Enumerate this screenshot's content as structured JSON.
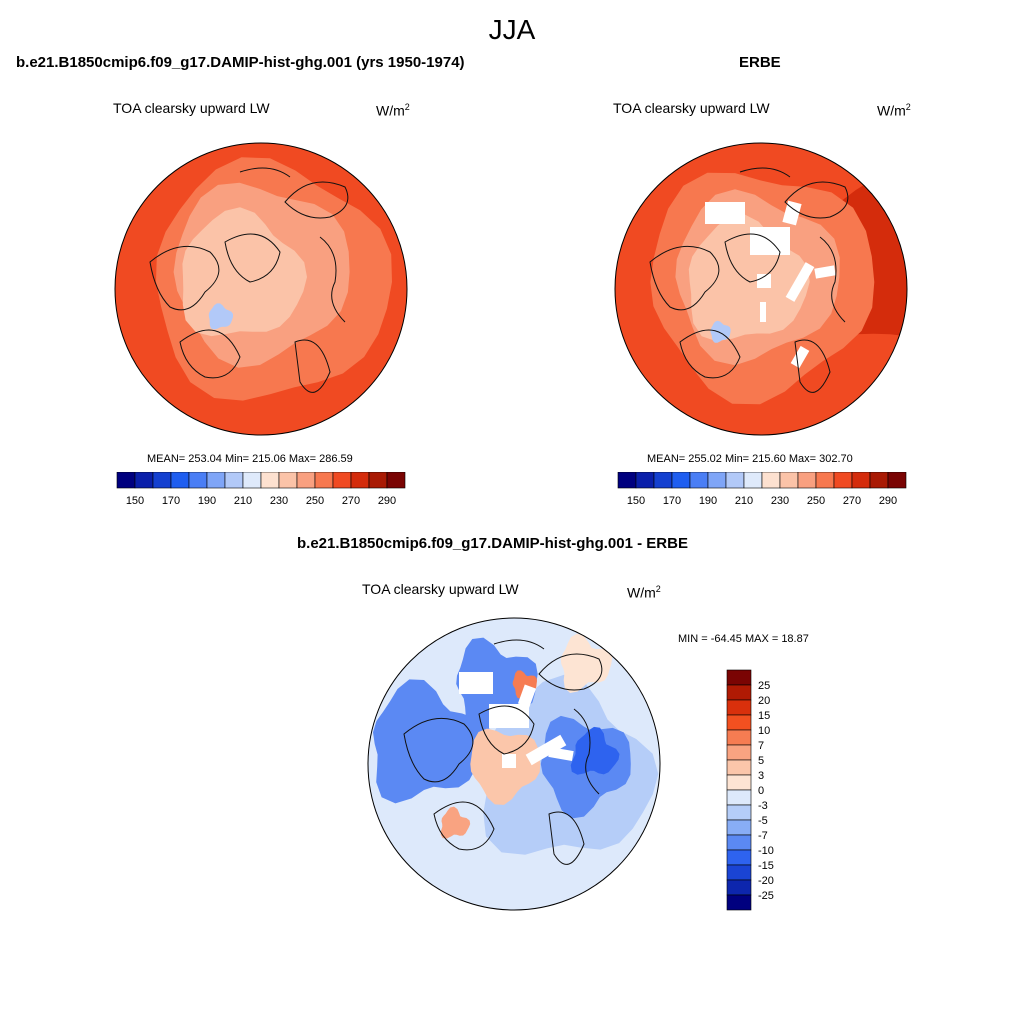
{
  "main_title": "JJA",
  "panels": [
    {
      "title": "b.e21.B1850cmip6.f09_g17.DAMIP-hist-ghg.001 (yrs 1950-1974)",
      "variable": "TOA clearsky upward LW",
      "units": "W/m",
      "units_sup": "2",
      "stats": "MEAN= 253.04  Min= 215.06  Max= 286.59"
    },
    {
      "title": "ERBE",
      "variable": "TOA clearsky upward LW",
      "units": "W/m",
      "units_sup": "2",
      "stats": "MEAN= 255.02  Min= 215.60  Max= 302.70"
    },
    {
      "title": "b.e21.B1850cmip6.f09_g17.DAMIP-hist-ghg.001 - ERBE",
      "variable": "TOA clearsky upward LW",
      "units": "W/m",
      "units_sup": "2",
      "stats": "MIN = -64.45 MAX =  18.87"
    }
  ],
  "chart_data": [
    {
      "type": "heatmap",
      "projection": "north polar stereographic",
      "title": "b.e21.B1850cmip6.f09_g17.DAMIP-hist-ghg.001 (yrs 1950-1974)",
      "variable": "TOA clearsky upward LW",
      "units": "W/m2",
      "mean": 253.04,
      "min": 215.06,
      "max": 286.59,
      "colorbar": {
        "orientation": "horizontal",
        "tick_labels": [
          "150",
          "170",
          "190",
          "210",
          "230",
          "250",
          "270",
          "290"
        ],
        "levels": [
          150,
          160,
          170,
          180,
          190,
          200,
          210,
          220,
          230,
          240,
          250,
          260,
          270,
          280,
          290
        ],
        "colors": [
          "#00007f",
          "#0a1faa",
          "#1440d0",
          "#1f5ef0",
          "#4a7ef5",
          "#7fa5f7",
          "#b2c9f8",
          "#dfeafb",
          "#fde1d0",
          "#fbc3a8",
          "#f9a080",
          "#f7784f",
          "#f04a22",
          "#d42c0c",
          "#a91a04",
          "#7a0403"
        ]
      }
    },
    {
      "type": "heatmap",
      "projection": "north polar stereographic",
      "title": "ERBE",
      "variable": "TOA clearsky upward LW",
      "units": "W/m2",
      "mean": 255.02,
      "min": 215.6,
      "max": 302.7,
      "colorbar": {
        "orientation": "horizontal",
        "tick_labels": [
          "150",
          "170",
          "190",
          "210",
          "230",
          "250",
          "270",
          "290"
        ],
        "levels": [
          150,
          160,
          170,
          180,
          190,
          200,
          210,
          220,
          230,
          240,
          250,
          260,
          270,
          280,
          290
        ],
        "colors": [
          "#00007f",
          "#0a1faa",
          "#1440d0",
          "#1f5ef0",
          "#4a7ef5",
          "#7fa5f7",
          "#b2c9f8",
          "#dfeafb",
          "#fde1d0",
          "#fbc3a8",
          "#f9a080",
          "#f7784f",
          "#f04a22",
          "#d42c0c",
          "#a91a04",
          "#7a0403"
        ]
      }
    },
    {
      "type": "heatmap",
      "projection": "north polar stereographic",
      "title": "b.e21.B1850cmip6.f09_g17.DAMIP-hist-ghg.001 - ERBE",
      "variable": "TOA clearsky upward LW",
      "units": "W/m2",
      "min": -64.45,
      "max": 18.87,
      "colorbar": {
        "orientation": "vertical",
        "tick_labels": [
          "25",
          "20",
          "15",
          "10",
          "7",
          "5",
          "3",
          "0",
          "-3",
          "-5",
          "-7",
          "-10",
          "-15",
          "-20",
          "-25"
        ],
        "colors": [
          "#7a0403",
          "#b01a04",
          "#d9300c",
          "#f25020",
          "#f67c52",
          "#f9a381",
          "#fbc6aa",
          "#fde4d3",
          "#dde9fb",
          "#b5cdf8",
          "#88adf6",
          "#5b89f3",
          "#2e63ef",
          "#1a44d4",
          "#0d26ad",
          "#00007f"
        ]
      }
    }
  ]
}
